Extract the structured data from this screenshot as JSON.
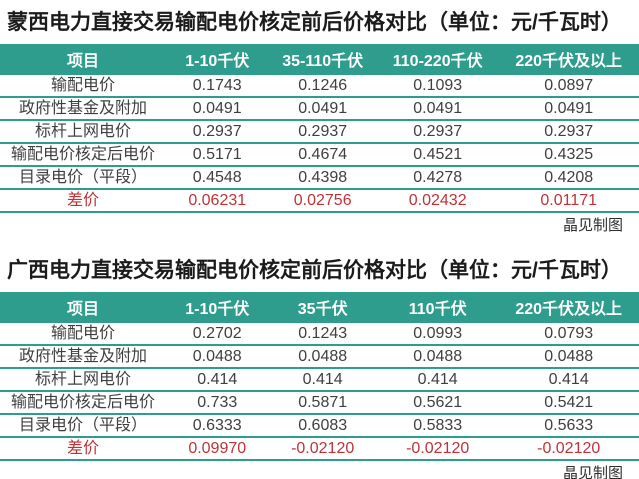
{
  "colors": {
    "teal_header": "#2f9d8e",
    "diff_red": "#c03238",
    "title_text": "#1b1b1b",
    "cell_text": "#3f3f3f"
  },
  "chart_data": [
    {
      "type": "table",
      "title": "蒙西电力直接交易输配电价核定前后价格对比（单位：元/千瓦时）",
      "columns": [
        "项目",
        "1-10千伏",
        "35-110千伏",
        "110-220千伏",
        "220千伏及以上"
      ],
      "rows": [
        {
          "label": "输配电价",
          "values": [
            "0.1743",
            "0.1246",
            "0.1093",
            "0.0897"
          ],
          "highlight": false
        },
        {
          "label": "政府性基金及附加",
          "values": [
            "0.0491",
            "0.0491",
            "0.0491",
            "0.0491"
          ],
          "highlight": false
        },
        {
          "label": "标杆上网电价",
          "values": [
            "0.2937",
            "0.2937",
            "0.2937",
            "0.2937"
          ],
          "highlight": false
        },
        {
          "label": "输配电价核定后电价",
          "values": [
            "0.5171",
            "0.4674",
            "0.4521",
            "0.4325"
          ],
          "highlight": false
        },
        {
          "label": "目录电价（平段）",
          "values": [
            "0.4548",
            "0.4398",
            "0.4278",
            "0.4208"
          ],
          "highlight": false
        },
        {
          "label": "差价",
          "values": [
            "0.06231",
            "0.02756",
            "0.02432",
            "0.01171"
          ],
          "highlight": true
        }
      ],
      "credit": "晶见制图"
    },
    {
      "type": "table",
      "title": "广西电力直接交易输配电价核定前后价格对比（单位：元/千瓦时）",
      "columns": [
        "项目",
        "1-10千伏",
        "35千伏",
        "110千伏",
        "220千伏及以上"
      ],
      "rows": [
        {
          "label": "输配电价",
          "values": [
            "0.2702",
            "0.1243",
            "0.0993",
            "0.0793"
          ],
          "highlight": false
        },
        {
          "label": "政府性基金及附加",
          "values": [
            "0.0488",
            "0.0488",
            "0.0488",
            "0.0488"
          ],
          "highlight": false
        },
        {
          "label": "标杆上网电价",
          "values": [
            "0.414",
            "0.414",
            "0.414",
            "0.414"
          ],
          "highlight": false
        },
        {
          "label": "输配电价核定后电价",
          "values": [
            "0.733",
            "0.5871",
            "0.5621",
            "0.5421"
          ],
          "highlight": false
        },
        {
          "label": "目录电价（平段）",
          "values": [
            "0.6333",
            "0.6083",
            "0.5833",
            "0.5633"
          ],
          "highlight": false
        },
        {
          "label": "差价",
          "values": [
            "0.09970",
            "-0.02120",
            "-0.02120",
            "-0.02120"
          ],
          "highlight": true
        }
      ],
      "credit": "晶见制图"
    }
  ]
}
